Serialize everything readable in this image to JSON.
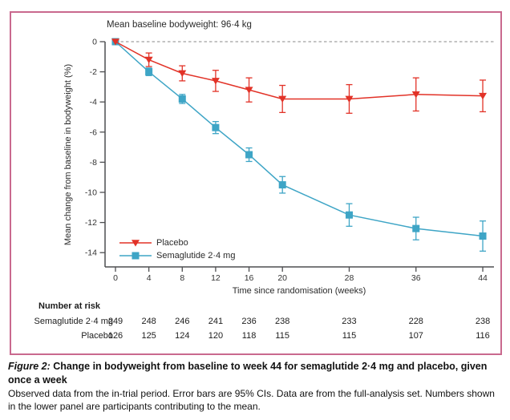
{
  "colors": {
    "border": "#c9698e",
    "placebo": "#e23227",
    "semaglutide": "#3ea5c6",
    "axis": "#4d4e50",
    "dashed_zero_line": "#8a8a8a",
    "text": "#1c1c1c"
  },
  "chart": {
    "annotation": "Mean baseline bodyweight: 96·4 kg",
    "x_label": "Time since randomisation (weeks)",
    "y_label": "Mean change from baseline in bodyweight (%)"
  },
  "chart_data": {
    "type": "line",
    "title": "Mean baseline bodyweight: 96·4 kg",
    "xlabel": "Time since randomisation (weeks)",
    "ylabel": "Mean change from baseline in bodyweight (%)",
    "x": [
      0,
      4,
      8,
      12,
      16,
      20,
      28,
      36,
      44
    ],
    "xticks": [
      0,
      4,
      8,
      12,
      16,
      20,
      28,
      36,
      44
    ],
    "yticks": [
      0,
      -2,
      -4,
      -6,
      -8,
      -10,
      -12,
      -14
    ],
    "ylim": [
      -14,
      0
    ],
    "grid": false,
    "zero_reference_line": "dashed",
    "legend_position": "lower-left-inside",
    "error_bars": "95% CI",
    "series": [
      {
        "name": "Placebo",
        "marker": "triangle-down",
        "color": "#e23227",
        "values": [
          0,
          -1.2,
          -2.1,
          -2.6,
          -3.2,
          -3.8,
          -3.8,
          -3.5,
          -3.6
        ],
        "ci_half_width": [
          0,
          0.45,
          0.5,
          0.7,
          0.8,
          0.9,
          0.95,
          1.1,
          1.05
        ]
      },
      {
        "name": "Semaglutide 2·4 mg",
        "marker": "square",
        "color": "#3ea5c6",
        "values": [
          0,
          -2.0,
          -3.8,
          -5.7,
          -7.5,
          -9.5,
          -11.5,
          -12.4,
          -12.9
        ],
        "ci_half_width": [
          0,
          0.25,
          0.3,
          0.4,
          0.45,
          0.55,
          0.75,
          0.75,
          1.0
        ]
      }
    ]
  },
  "risk_table": {
    "header": "Number at risk",
    "rows": [
      {
        "label": "Semaglutide 2·4 mg",
        "values": [
          249,
          248,
          246,
          241,
          236,
          238,
          233,
          228,
          238
        ]
      },
      {
        "label": "Placebo",
        "values": [
          126,
          125,
          124,
          120,
          118,
          115,
          115,
          107,
          116
        ]
      }
    ]
  },
  "caption": {
    "label": "Figure 2:",
    "title": " Change in bodyweight from baseline to week 44 for semaglutide 2·4 mg and placebo, given once a week",
    "body": "Observed data from the in-trial period. Error bars are 95% CIs. Data are from the full-analysis set. Numbers shown in the lower panel are participants contributing to the mean."
  }
}
